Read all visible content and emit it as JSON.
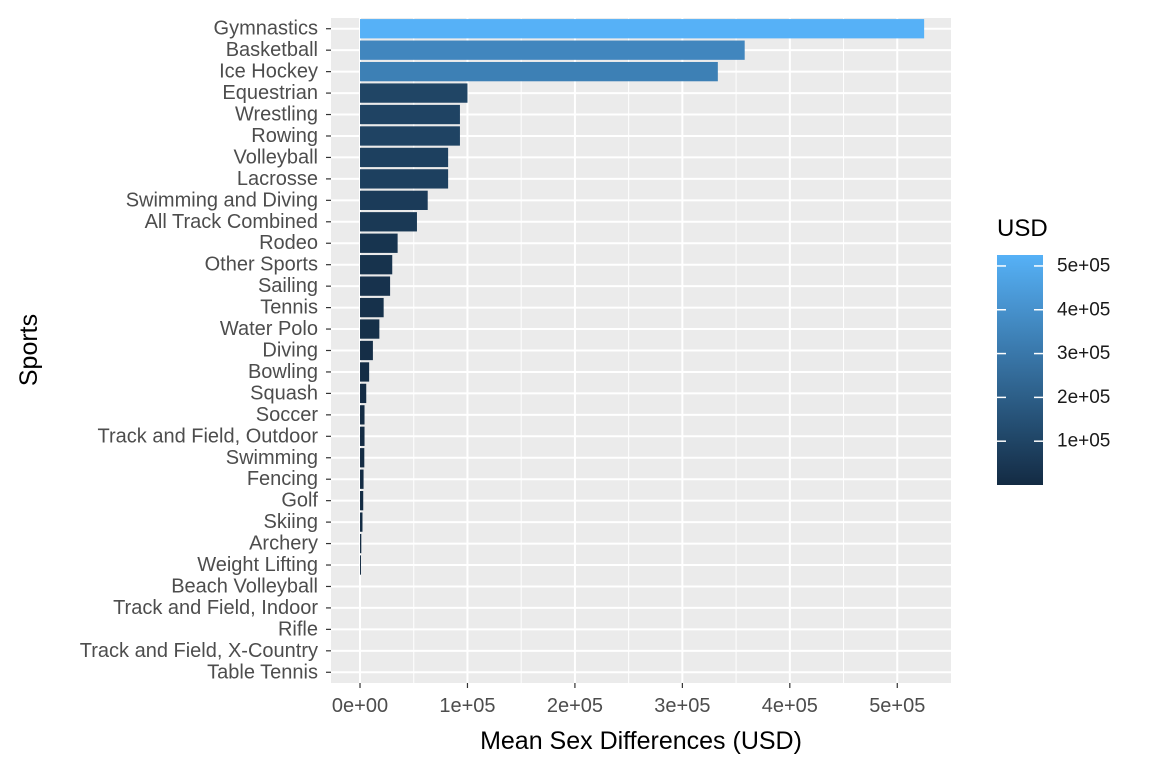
{
  "chart_data": {
    "type": "bar",
    "orientation": "horizontal",
    "xlabel": "Mean Sex Differences (USD)",
    "ylabel": "Sports",
    "xlim": [
      -27000,
      550000
    ],
    "x_ticks": [
      0,
      100000,
      200000,
      300000,
      400000,
      500000
    ],
    "x_tick_labels": [
      "0e+00",
      "1e+05",
      "2e+05",
      "3e+05",
      "4e+05",
      "5e+05"
    ],
    "categories": [
      "Gymnastics",
      "Basketball",
      "Ice Hockey",
      "Equestrian",
      "Wrestling",
      "Rowing",
      "Volleyball",
      "Lacrosse",
      "Swimming and Diving",
      "All Track Combined",
      "Rodeo",
      "Other Sports",
      "Sailing",
      "Tennis",
      "Water Polo",
      "Diving",
      "Bowling",
      "Squash",
      "Soccer",
      "Track and Field, Outdoor",
      "Swimming",
      "Fencing",
      "Golf",
      "Skiing",
      "Archery",
      "Weight Lifting",
      "Beach Volleyball",
      "Track and Field, Indoor",
      "Rifle",
      "Track and Field, X-Country",
      "Table Tennis"
    ],
    "values": [
      525000,
      358000,
      333000,
      100000,
      93000,
      93000,
      82000,
      82000,
      63000,
      53000,
      35000,
      30000,
      28000,
      22000,
      18000,
      12000,
      8500,
      5800,
      4200,
      4200,
      4000,
      3300,
      3000,
      2300,
      1200,
      900,
      0,
      0,
      0,
      0,
      0
    ],
    "grid": true,
    "panel_background": "#ebebeb",
    "legend": {
      "title": "USD",
      "position": "right",
      "type": "colorbar",
      "range": [
        0,
        525000
      ],
      "breaks": [
        100000,
        200000,
        300000,
        400000,
        500000
      ],
      "break_labels": [
        "1e+05",
        "2e+05",
        "3e+05",
        "4e+05",
        "5e+05"
      ],
      "low_color": "#132b43",
      "high_color": "#56b1f7"
    }
  }
}
